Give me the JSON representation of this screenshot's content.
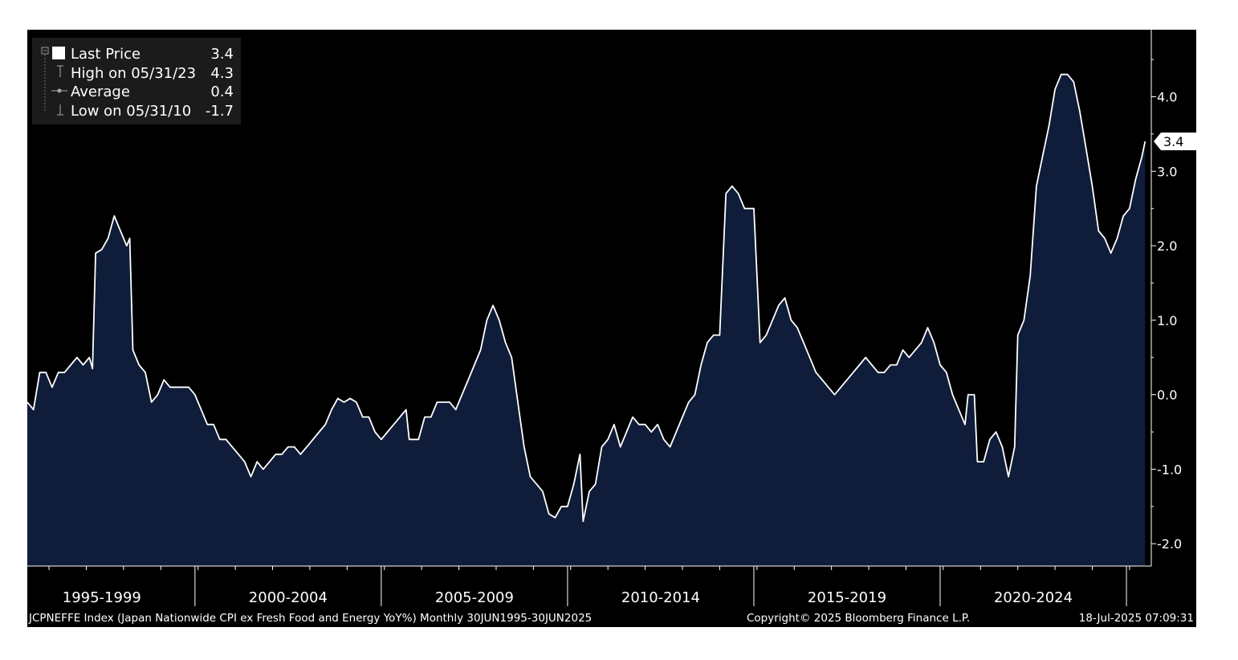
{
  "chart_data": {
    "type": "area",
    "frequency": "Monthly",
    "colors": {
      "background": "#000000",
      "fill": "#0f1c3a",
      "line": "#ffffff",
      "axis": "#ffffff",
      "footer_bg": "#000000"
    },
    "ylim": [
      -2.3,
      4.9
    ],
    "y_ticks": [
      {
        "v": 4.0,
        "label": "4.0"
      },
      {
        "v": 3.0,
        "label": "3.0"
      },
      {
        "v": 2.0,
        "label": "2.0"
      },
      {
        "v": 1.0,
        "label": "1.0"
      },
      {
        "v": 0.0,
        "label": "0.0"
      },
      {
        "v": -1.0,
        "label": "-1.0"
      },
      {
        "v": -2.0,
        "label": "-2.0"
      }
    ],
    "x_range": [
      "1995-06",
      "2025-08"
    ],
    "x_groups": [
      {
        "label": "1995-1999",
        "center": "1997-06"
      },
      {
        "label": "2000-2004",
        "center": "2002-06"
      },
      {
        "label": "2005-2009",
        "center": "2007-06"
      },
      {
        "label": "2010-2014",
        "center": "2012-06"
      },
      {
        "label": "2015-2019",
        "center": "2017-06"
      },
      {
        "label": "2020-2024",
        "center": "2022-06"
      }
    ],
    "x_separators": [
      "1999-12",
      "2004-12",
      "2009-12",
      "2014-12",
      "2019-12",
      "2024-12"
    ],
    "legend": {
      "position": "top-left",
      "items": [
        {
          "icon": "square-icon",
          "label": "Last Price",
          "value": "3.4"
        },
        {
          "icon": "high-marker-icon",
          "label": "High on 05/31/23",
          "value": "4.3"
        },
        {
          "icon": "average-marker-icon",
          "label": "Average",
          "value": "0.4"
        },
        {
          "icon": "low-marker-icon",
          "label": "Low on 05/31/10",
          "value": "-1.7"
        }
      ]
    },
    "last_price_tag": "3.4",
    "points": [
      [
        "1995-06",
        -0.1
      ],
      [
        "1995-08",
        -0.2
      ],
      [
        "1995-10",
        0.3
      ],
      [
        "1995-12",
        0.3
      ],
      [
        "1996-02",
        0.1
      ],
      [
        "1996-04",
        0.3
      ],
      [
        "1996-06",
        0.3
      ],
      [
        "1996-08",
        0.4
      ],
      [
        "1996-10",
        0.5
      ],
      [
        "1996-12",
        0.4
      ],
      [
        "1997-02",
        0.5
      ],
      [
        "1997-03",
        0.35
      ],
      [
        "1997-04",
        1.9
      ],
      [
        "1997-06",
        1.95
      ],
      [
        "1997-08",
        2.1
      ],
      [
        "1997-10",
        2.4
      ],
      [
        "1997-12",
        2.2
      ],
      [
        "1998-02",
        2.0
      ],
      [
        "1998-03",
        2.1
      ],
      [
        "1998-04",
        0.6
      ],
      [
        "1998-06",
        0.4
      ],
      [
        "1998-08",
        0.3
      ],
      [
        "1998-10",
        -0.1
      ],
      [
        "1998-12",
        0.0
      ],
      [
        "1999-02",
        0.2
      ],
      [
        "1999-04",
        0.1
      ],
      [
        "1999-06",
        0.1
      ],
      [
        "1999-08",
        0.1
      ],
      [
        "1999-10",
        0.1
      ],
      [
        "1999-12",
        0.0
      ],
      [
        "2000-02",
        -0.2
      ],
      [
        "2000-04",
        -0.4
      ],
      [
        "2000-06",
        -0.4
      ],
      [
        "2000-08",
        -0.6
      ],
      [
        "2000-10",
        -0.6
      ],
      [
        "2000-12",
        -0.7
      ],
      [
        "2001-02",
        -0.8
      ],
      [
        "2001-04",
        -0.9
      ],
      [
        "2001-06",
        -1.1
      ],
      [
        "2001-08",
        -0.9
      ],
      [
        "2001-10",
        -1.0
      ],
      [
        "2001-12",
        -0.9
      ],
      [
        "2002-02",
        -0.8
      ],
      [
        "2002-04",
        -0.8
      ],
      [
        "2002-06",
        -0.7
      ],
      [
        "2002-08",
        -0.7
      ],
      [
        "2002-10",
        -0.8
      ],
      [
        "2002-12",
        -0.7
      ],
      [
        "2003-02",
        -0.6
      ],
      [
        "2003-04",
        -0.5
      ],
      [
        "2003-06",
        -0.4
      ],
      [
        "2003-08",
        -0.2
      ],
      [
        "2003-10",
        -0.05
      ],
      [
        "2003-12",
        -0.1
      ],
      [
        "2004-02",
        -0.05
      ],
      [
        "2004-04",
        -0.1
      ],
      [
        "2004-06",
        -0.3
      ],
      [
        "2004-08",
        -0.3
      ],
      [
        "2004-10",
        -0.5
      ],
      [
        "2004-12",
        -0.6
      ],
      [
        "2005-02",
        -0.5
      ],
      [
        "2005-04",
        -0.4
      ],
      [
        "2005-06",
        -0.3
      ],
      [
        "2005-08",
        -0.2
      ],
      [
        "2005-09",
        -0.6
      ],
      [
        "2005-12",
        -0.6
      ],
      [
        "2006-02",
        -0.3
      ],
      [
        "2006-04",
        -0.3
      ],
      [
        "2006-06",
        -0.1
      ],
      [
        "2006-08",
        -0.1
      ],
      [
        "2006-10",
        -0.1
      ],
      [
        "2006-12",
        -0.2
      ],
      [
        "2007-02",
        0.0
      ],
      [
        "2007-04",
        0.2
      ],
      [
        "2007-06",
        0.4
      ],
      [
        "2007-08",
        0.6
      ],
      [
        "2007-10",
        1.0
      ],
      [
        "2007-12",
        1.2
      ],
      [
        "2008-02",
        1.0
      ],
      [
        "2008-04",
        0.7
      ],
      [
        "2008-06",
        0.5
      ],
      [
        "2008-08",
        -0.1
      ],
      [
        "2008-10",
        -0.7
      ],
      [
        "2008-12",
        -1.1
      ],
      [
        "2009-02",
        -1.2
      ],
      [
        "2009-04",
        -1.3
      ],
      [
        "2009-06",
        -1.6
      ],
      [
        "2009-08",
        -1.65
      ],
      [
        "2009-10",
        -1.5
      ],
      [
        "2009-12",
        -1.5
      ],
      [
        "2010-02",
        -1.2
      ],
      [
        "2010-04",
        -0.8
      ],
      [
        "2010-05",
        -1.7
      ],
      [
        "2010-07",
        -1.3
      ],
      [
        "2010-09",
        -1.2
      ],
      [
        "2010-11",
        -0.7
      ],
      [
        "2011-01",
        -0.6
      ],
      [
        "2011-03",
        -0.4
      ],
      [
        "2011-05",
        -0.7
      ],
      [
        "2011-07",
        -0.5
      ],
      [
        "2011-09",
        -0.3
      ],
      [
        "2011-11",
        -0.4
      ],
      [
        "2012-01",
        -0.4
      ],
      [
        "2012-03",
        -0.5
      ],
      [
        "2012-05",
        -0.4
      ],
      [
        "2012-07",
        -0.6
      ],
      [
        "2012-09",
        -0.7
      ],
      [
        "2012-11",
        -0.5
      ],
      [
        "2013-01",
        -0.3
      ],
      [
        "2013-03",
        -0.1
      ],
      [
        "2013-05",
        0.0
      ],
      [
        "2013-07",
        0.4
      ],
      [
        "2013-09",
        0.7
      ],
      [
        "2013-11",
        0.8
      ],
      [
        "2014-01",
        0.8
      ],
      [
        "2014-03",
        2.7
      ],
      [
        "2014-05",
        2.8
      ],
      [
        "2014-07",
        2.7
      ],
      [
        "2014-09",
        2.5
      ],
      [
        "2014-12",
        2.5
      ],
      [
        "2015-02",
        0.7
      ],
      [
        "2015-04",
        0.8
      ],
      [
        "2015-06",
        1.0
      ],
      [
        "2015-08",
        1.2
      ],
      [
        "2015-10",
        1.3
      ],
      [
        "2015-12",
        1.0
      ],
      [
        "2016-02",
        0.9
      ],
      [
        "2016-04",
        0.7
      ],
      [
        "2016-06",
        0.5
      ],
      [
        "2016-08",
        0.3
      ],
      [
        "2016-10",
        0.2
      ],
      [
        "2016-12",
        0.1
      ],
      [
        "2017-02",
        0.0
      ],
      [
        "2017-04",
        0.1
      ],
      [
        "2017-06",
        0.2
      ],
      [
        "2017-08",
        0.3
      ],
      [
        "2017-10",
        0.4
      ],
      [
        "2017-12",
        0.5
      ],
      [
        "2018-02",
        0.4
      ],
      [
        "2018-04",
        0.3
      ],
      [
        "2018-06",
        0.3
      ],
      [
        "2018-08",
        0.4
      ],
      [
        "2018-10",
        0.4
      ],
      [
        "2018-12",
        0.6
      ],
      [
        "2019-02",
        0.5
      ],
      [
        "2019-04",
        0.6
      ],
      [
        "2019-06",
        0.7
      ],
      [
        "2019-08",
        0.9
      ],
      [
        "2019-10",
        0.7
      ],
      [
        "2019-12",
        0.4
      ],
      [
        "2020-02",
        0.3
      ],
      [
        "2020-04",
        0.0
      ],
      [
        "2020-06",
        -0.2
      ],
      [
        "2020-08",
        -0.4
      ],
      [
        "2020-09",
        0.0
      ],
      [
        "2020-11",
        0.0
      ],
      [
        "2020-12",
        -0.9
      ],
      [
        "2021-02",
        -0.9
      ],
      [
        "2021-04",
        -0.6
      ],
      [
        "2021-06",
        -0.5
      ],
      [
        "2021-08",
        -0.7
      ],
      [
        "2021-10",
        -1.1
      ],
      [
        "2021-12",
        -0.7
      ],
      [
        "2022-01",
        0.8
      ],
      [
        "2022-03",
        1.0
      ],
      [
        "2022-05",
        1.6
      ],
      [
        "2022-07",
        2.8
      ],
      [
        "2022-09",
        3.2
      ],
      [
        "2022-11",
        3.6
      ],
      [
        "2023-01",
        4.1
      ],
      [
        "2023-03",
        4.3
      ],
      [
        "2023-05",
        4.3
      ],
      [
        "2023-07",
        4.2
      ],
      [
        "2023-09",
        3.8
      ],
      [
        "2023-11",
        3.3
      ],
      [
        "2024-01",
        2.8
      ],
      [
        "2024-03",
        2.2
      ],
      [
        "2024-05",
        2.1
      ],
      [
        "2024-07",
        1.9
      ],
      [
        "2024-09",
        2.1
      ],
      [
        "2024-11",
        2.4
      ],
      [
        "2025-01",
        2.5
      ],
      [
        "2025-03",
        2.9
      ],
      [
        "2025-05",
        3.2
      ],
      [
        "2025-06",
        3.4
      ]
    ],
    "footer": {
      "description": "JCPNEFFE Index (Japan Nationwide CPI ex Fresh Food and Energy YoY%)  Monthly 30JUN1995-30JUN2025",
      "copyright": "Copyright© 2025 Bloomberg Finance L.P.",
      "timestamp": "18-Jul-2025 07:09:31"
    }
  }
}
